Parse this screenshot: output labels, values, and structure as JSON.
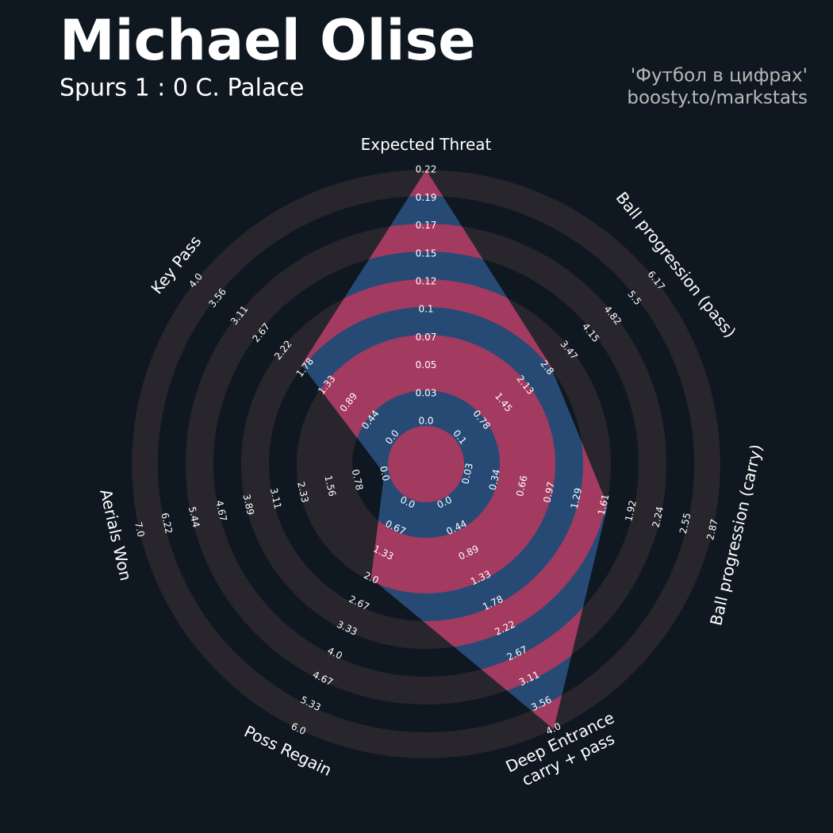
{
  "chart_data": {
    "type": "radar",
    "title": "Michael Olise",
    "subtitle": "Spurs 1 : 0 C. Palace",
    "credits": [
      "'Футбол в цифрах'",
      "boosty.to/markstats"
    ],
    "background_color": "#0f1820",
    "ring_color": "#28252c",
    "polygon_color": "#274a75",
    "polygon_ring_color": "#a33a60",
    "params": [
      {
        "label": [
          "Expected Threat"
        ],
        "value": 0.22,
        "ticks": [
          {
            "value": 0,
            "label": "0.0"
          },
          0.03,
          0.05,
          0.07,
          0.1,
          0.12,
          0.15,
          0.17,
          0.19,
          0.22
        ]
      },
      {
        "label": [
          "Ball progression (pass)"
        ],
        "value": 2.9,
        "ticks": [
          0.1,
          0.78,
          1.45,
          2.13,
          2.8,
          3.47,
          4.15,
          4.82,
          5.5,
          6.17
        ]
      },
      {
        "label": [
          "Ball progression (carry)"
        ],
        "value": 1.65,
        "ticks": [
          0.03,
          0.34,
          0.66,
          0.97,
          1.29,
          1.61,
          1.92,
          2.24,
          2.55,
          2.87
        ]
      },
      {
        "label": [
          "Deep Entrance",
          "carry + pass"
        ],
        "value": 4.0,
        "ticks": [
          {
            "value": 0,
            "label": "0.0"
          },
          0.44,
          0.89,
          1.33,
          1.78,
          2.22,
          2.67,
          3.11,
          3.56,
          {
            "value": 4,
            "label": "4.0"
          }
        ]
      },
      {
        "label": [
          "Poss Regain"
        ],
        "value": 2.0,
        "ticks": [
          {
            "value": 0,
            "label": "0.0"
          },
          0.67,
          1.33,
          {
            "value": 2,
            "label": "2.0"
          },
          2.67,
          3.33,
          {
            "value": 4,
            "label": "4.0"
          },
          4.67,
          5.33,
          {
            "value": 6,
            "label": "6.0"
          }
        ]
      },
      {
        "label": [
          "Aerials Won"
        ],
        "value": 0.0,
        "ticks": [
          {
            "value": 0,
            "label": "0.0"
          },
          0.78,
          1.56,
          2.33,
          3.11,
          3.89,
          4.67,
          5.44,
          6.22,
          {
            "value": 7,
            "label": "7.0"
          }
        ]
      },
      {
        "label": [
          "Key Pass"
        ],
        "value": 1.85,
        "ticks": [
          {
            "value": 0,
            "label": "0.0"
          },
          0.44,
          0.89,
          1.33,
          1.78,
          2.22,
          2.67,
          3.11,
          3.56,
          {
            "value": 4,
            "label": "4.0"
          }
        ]
      }
    ]
  }
}
